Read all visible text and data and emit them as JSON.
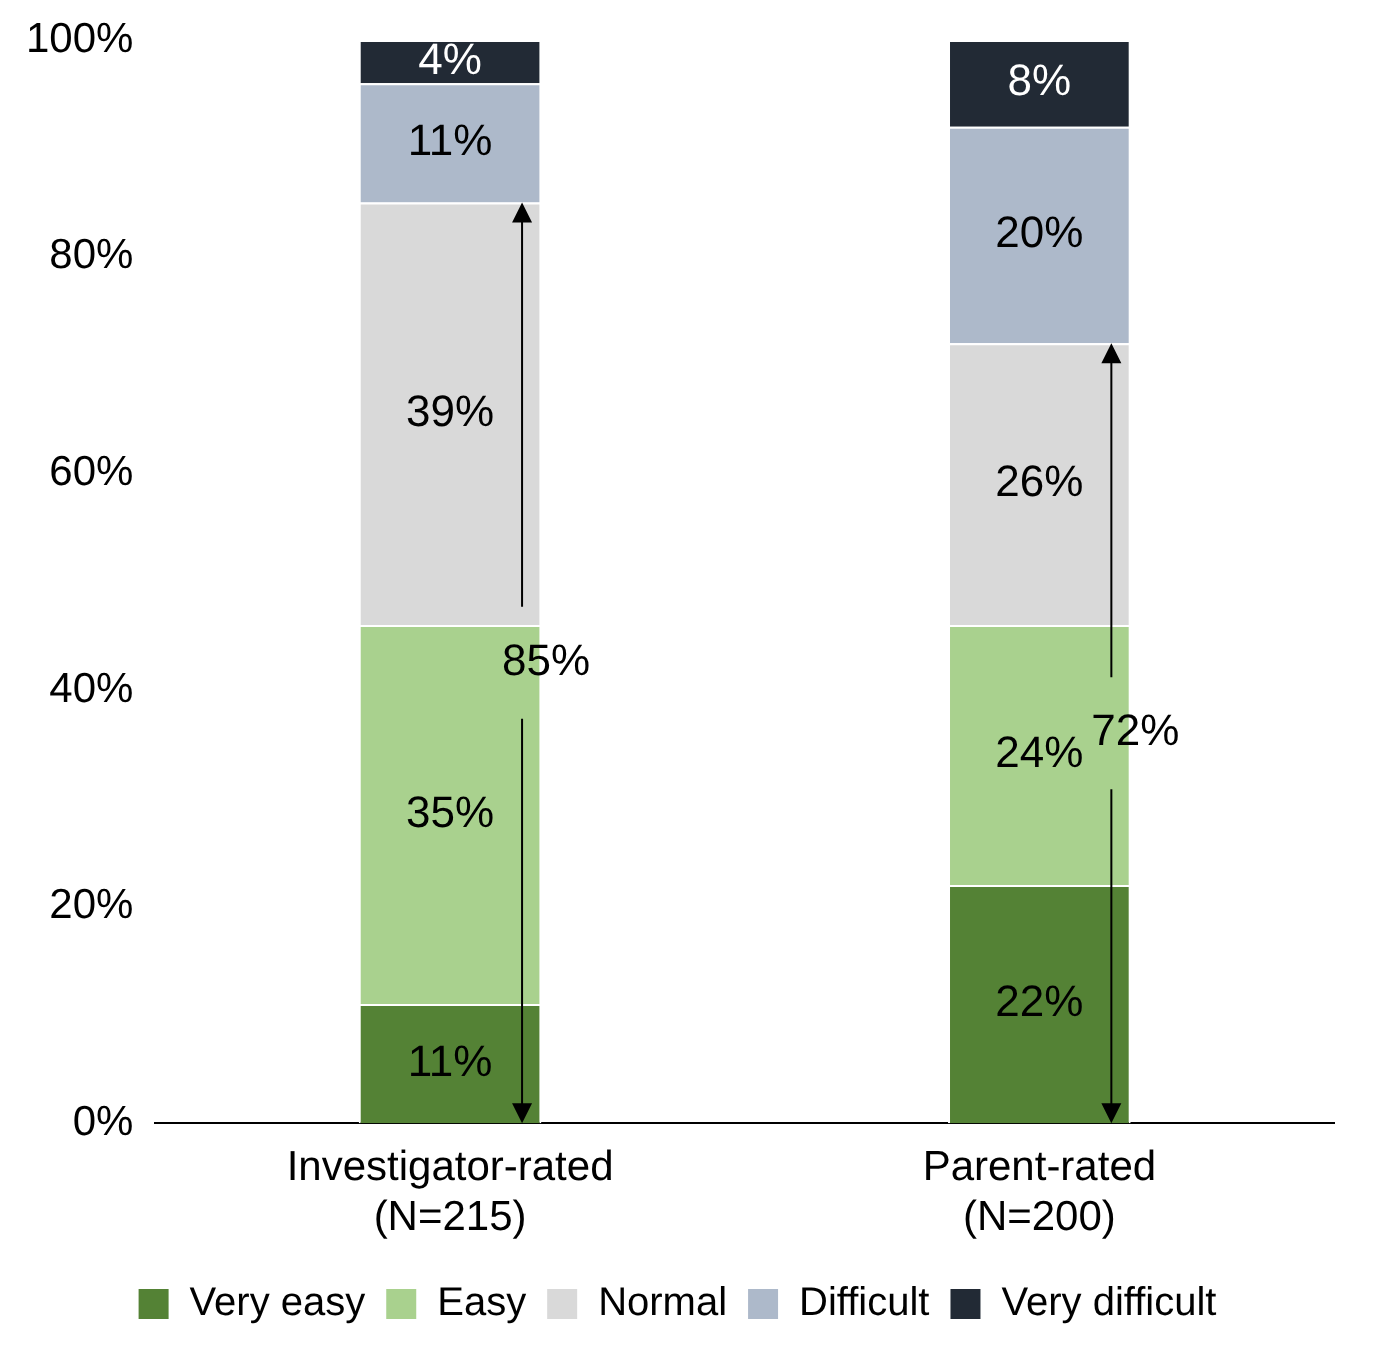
{
  "chart_data": {
    "type": "bar",
    "stacked": true,
    "categories": [
      "Investigator-rated\n(N=215)",
      "Parent-rated\n(N=200)"
    ],
    "series": [
      {
        "name": "Very easy",
        "color": "#548235",
        "values": [
          11,
          22
        ],
        "value_labels": [
          "11%",
          "22%"
        ]
      },
      {
        "name": "Easy",
        "color": "#a9d18e",
        "values": [
          35,
          24
        ],
        "value_labels": [
          "35%",
          "24%"
        ]
      },
      {
        "name": "Normal",
        "color": "#d9d9d9",
        "values": [
          39,
          26
        ],
        "value_labels": [
          "39%",
          "26%"
        ]
      },
      {
        "name": "Difficult",
        "color": "#adb9ca",
        "values": [
          11,
          20
        ],
        "value_labels": [
          "11%",
          "20%"
        ]
      },
      {
        "name": "Very difficult",
        "color": "#222a35",
        "values": [
          4,
          8
        ],
        "value_labels": [
          "4%",
          "8%"
        ]
      }
    ],
    "ylim": [
      0,
      100
    ],
    "yticks": [
      {
        "value": 0,
        "label": "0%"
      },
      {
        "value": 20,
        "label": "20%"
      },
      {
        "value": 40,
        "label": "40%"
      },
      {
        "value": 60,
        "label": "60%"
      },
      {
        "value": 80,
        "label": "80%"
      },
      {
        "value": 100,
        "label": "100%"
      }
    ],
    "grid": false,
    "legend": "bottom",
    "annotations": [
      "85%",
      "72%"
    ]
  }
}
